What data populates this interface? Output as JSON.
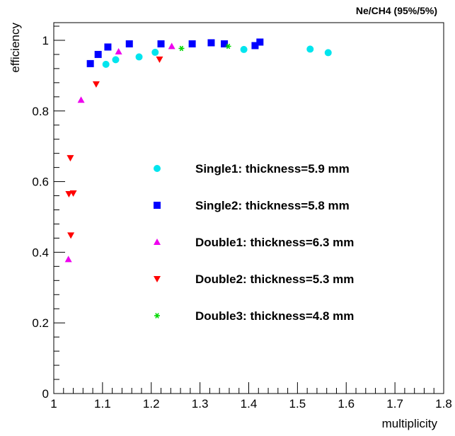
{
  "chart_data": {
    "type": "scatter",
    "title": "Ne/CH4 (95%/5%)",
    "xlabel": "multiplicity",
    "ylabel": "efficiency",
    "xlim": [
      1,
      1.8
    ],
    "ylim": [
      0,
      1.05
    ],
    "x_ticks": [
      "1",
      "1.1",
      "1.2",
      "1.3",
      "1.4",
      "1.5",
      "1.6",
      "1.7",
      "1.8"
    ],
    "y_ticks": [
      "0",
      "0.2",
      "0.4",
      "0.6",
      "0.8",
      "1"
    ],
    "grid": false,
    "legend_position": "center",
    "series": [
      {
        "name": "Single1: thickness=5.9 mm",
        "marker": "circle",
        "color": "#00e5ee",
        "x": [
          1.107,
          1.127,
          1.175,
          1.208,
          1.39,
          1.526,
          1.563
        ],
        "y": [
          0.932,
          0.945,
          0.953,
          0.966,
          0.974,
          0.975,
          0.965
        ]
      },
      {
        "name": "Single2: thickness=5.8 mm",
        "marker": "square",
        "color": "#0000ff",
        "x": [
          1.075,
          1.091,
          1.111,
          1.155,
          1.22,
          1.284,
          1.323,
          1.35,
          1.413,
          1.423
        ],
        "y": [
          0.934,
          0.96,
          0.981,
          0.99,
          0.99,
          0.99,
          0.993,
          0.99,
          0.985,
          0.995
        ]
      },
      {
        "name": "Double1: thickness=6.3 mm",
        "marker": "triangle-up",
        "color": "#ee00ee",
        "x": [
          1.03,
          1.056,
          1.133,
          1.242
        ],
        "y": [
          0.38,
          0.831,
          0.968,
          0.983
        ]
      },
      {
        "name": "Double2: thickness=5.3 mm",
        "marker": "triangle-down",
        "color": "#ff0000",
        "x": [
          1.031,
          1.034,
          1.035,
          1.04,
          1.087,
          1.217
        ],
        "y": [
          0.565,
          0.667,
          0.448,
          0.567,
          0.876,
          0.946
        ]
      },
      {
        "name": "Double3: thickness=4.8 mm",
        "marker": "star",
        "color": "#00d800",
        "x": [
          1.262,
          1.358
        ],
        "y": [
          0.977,
          0.983
        ]
      }
    ]
  }
}
